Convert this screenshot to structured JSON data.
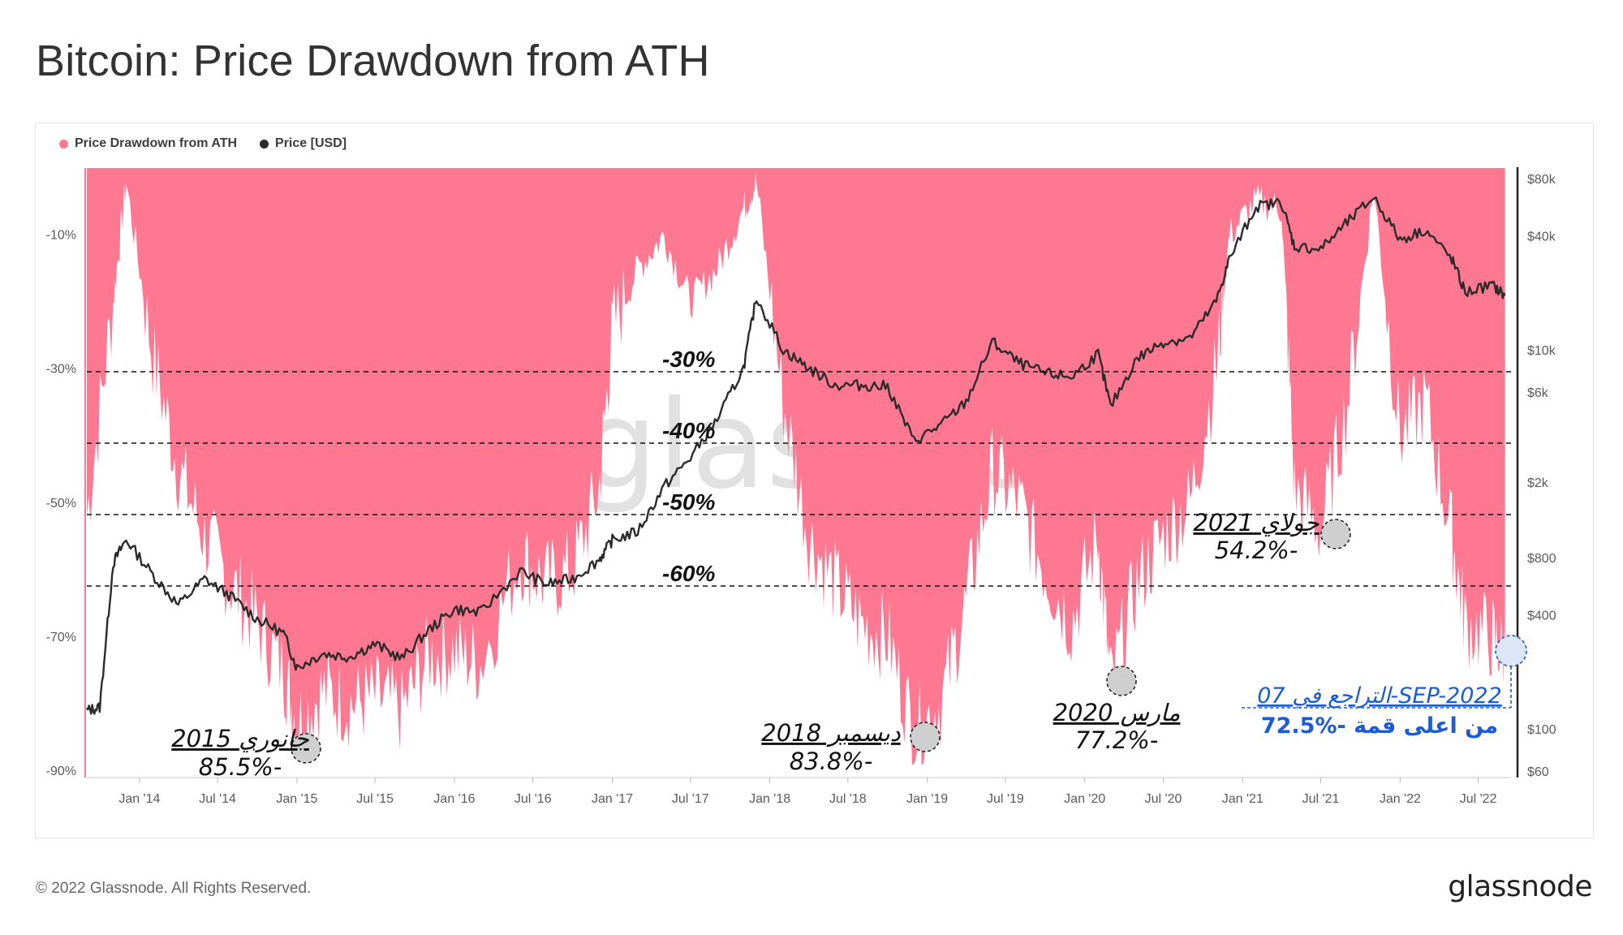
{
  "title": "Bitcoin: Price Drawdown from ATH",
  "legend": [
    {
      "label": "Price Drawdown from ATH",
      "color": "#ff7892"
    },
    {
      "label": "Price [USD]",
      "color": "#2b2b2b"
    }
  ],
  "watermark": "glassnode",
  "footer": "© 2022 Glassnode. All Rights Reserved.",
  "brand": "glassnode",
  "chart_data": {
    "type": "area",
    "title": "Bitcoin: Price Drawdown from ATH",
    "x_ticks": [
      "Jan '14",
      "Jul '14",
      "Jan '15",
      "Jul '15",
      "Jan '16",
      "Jul '16",
      "Jan '17",
      "Jul '17",
      "Jan '18",
      "Jul '18",
      "Jan '19",
      "Jul '19",
      "Jan '20",
      "Jul '20",
      "Jan '21",
      "Jul '21",
      "Jan '22",
      "Jul '22"
    ],
    "left_axis": {
      "ticks": [
        "-10%",
        "-30%",
        "-50%",
        "-70%",
        "-90%"
      ],
      "ylim": [
        -90,
        0
      ]
    },
    "right_axis": {
      "ticks": [
        "$80k",
        "$40k",
        "$10k",
        "$6k",
        "$2k",
        "$800",
        "$400",
        "$100",
        "$60"
      ],
      "scale": "log"
    },
    "series": [
      {
        "name": "Price Drawdown from ATH",
        "color": "#ff7892",
        "x": [
          "2013-09",
          "2013-11",
          "2013-12",
          "2014-02",
          "2014-04",
          "2014-06",
          "2014-08",
          "2014-10",
          "2014-12",
          "2015-01",
          "2015-03",
          "2015-05",
          "2015-07",
          "2015-09",
          "2015-11",
          "2016-01",
          "2016-03",
          "2016-06",
          "2016-08",
          "2016-10",
          "2016-12",
          "2017-01",
          "2017-03",
          "2017-05",
          "2017-07",
          "2017-09",
          "2017-11",
          "2017-12",
          "2018-02",
          "2018-04",
          "2018-06",
          "2018-08",
          "2018-10",
          "2018-12",
          "2019-02",
          "2019-04",
          "2019-06",
          "2019-08",
          "2019-10",
          "2019-12",
          "2020-02",
          "2020-03",
          "2020-05",
          "2020-07",
          "2020-09",
          "2020-11",
          "2020-12",
          "2021-02",
          "2021-04",
          "2021-05",
          "2021-07",
          "2021-09",
          "2021-11",
          "2022-01",
          "2022-03",
          "2022-05",
          "2022-06",
          "2022-08",
          "2022-09"
        ],
        "values": [
          -52,
          -20,
          -2,
          -28,
          -45,
          -55,
          -62,
          -68,
          -75,
          -83,
          -78,
          -80,
          -79,
          -81,
          -73,
          -72,
          -74,
          -58,
          -62,
          -60,
          -48,
          -24,
          -15,
          -10,
          -20,
          -15,
          -6,
          -2,
          -35,
          -55,
          -62,
          -68,
          -70,
          -84,
          -80,
          -65,
          -45,
          -50,
          -60,
          -68,
          -55,
          -77,
          -62,
          -55,
          -50,
          -30,
          -10,
          -5,
          -6,
          -48,
          -54,
          -35,
          -3,
          -40,
          -35,
          -55,
          -68,
          -70,
          -72.5
        ]
      },
      {
        "name": "Price [USD]",
        "color": "#2b2b2b",
        "x": [
          "2013-09",
          "2013-10",
          "2013-11",
          "2013-12",
          "2014-02",
          "2014-04",
          "2014-06",
          "2014-08",
          "2014-10",
          "2014-12",
          "2015-01",
          "2015-03",
          "2015-05",
          "2015-07",
          "2015-09",
          "2015-11",
          "2016-01",
          "2016-03",
          "2016-06",
          "2016-08",
          "2016-10",
          "2016-12",
          "2017-01",
          "2017-03",
          "2017-05",
          "2017-07",
          "2017-09",
          "2017-11",
          "2017-12",
          "2018-02",
          "2018-04",
          "2018-06",
          "2018-08",
          "2018-10",
          "2018-12",
          "2019-02",
          "2019-04",
          "2019-06",
          "2019-08",
          "2019-10",
          "2019-12",
          "2020-02",
          "2020-03",
          "2020-05",
          "2020-07",
          "2020-09",
          "2020-11",
          "2020-12",
          "2021-02",
          "2021-04",
          "2021-05",
          "2021-07",
          "2021-09",
          "2021-11",
          "2022-01",
          "2022-03",
          "2022-05",
          "2022-06",
          "2022-08",
          "2022-09"
        ],
        "values": [
          125,
          130,
          750,
          1000,
          650,
          450,
          620,
          500,
          380,
          320,
          210,
          250,
          240,
          280,
          235,
          330,
          430,
          410,
          680,
          580,
          620,
          780,
          990,
          1100,
          1900,
          2700,
          4300,
          8000,
          19000,
          10000,
          8000,
          6500,
          6500,
          6400,
          3300,
          4000,
          5300,
          11000,
          8500,
          7500,
          7200,
          9500,
          5000,
          9000,
          11000,
          11500,
          18000,
          30000,
          57000,
          60000,
          35000,
          34000,
          47000,
          64000,
          38000,
          43000,
          30000,
          20000,
          22000,
          19300
        ]
      }
    ],
    "reference_lines": [
      "-30%",
      "-40%",
      "-50%",
      "-60%"
    ],
    "annotations": [
      {
        "line1": "جانوري 2015",
        "line2": "85.5%-"
      },
      {
        "line1": "ديسمبر 2018",
        "line2": "83.8%-"
      },
      {
        "line1": "مارس 2020",
        "line2": "77.2%-"
      },
      {
        "line1": "جولاي 2021",
        "line2": "54.2%-"
      },
      {
        "line1": "التراجع في 07-SEP-2022",
        "line2": "72.5%- من اعلى قمة"
      }
    ]
  }
}
